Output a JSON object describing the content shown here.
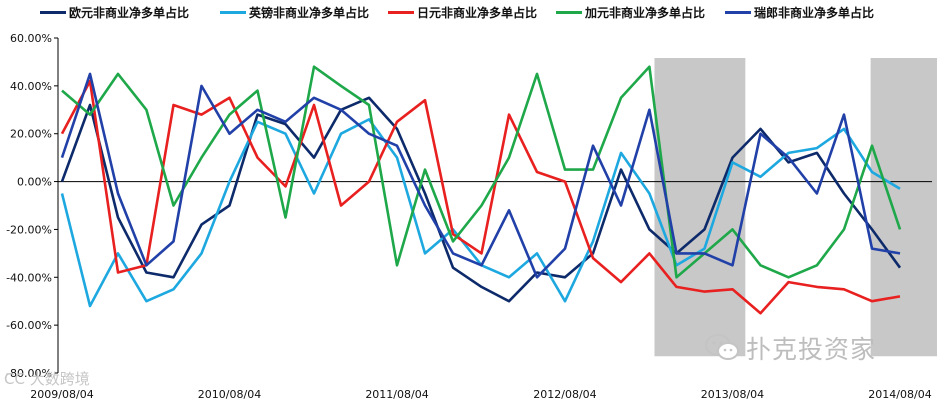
{
  "chart_data": {
    "type": "line",
    "y_ticks": [
      "60.00%",
      "40.00%",
      "20.00%",
      "0.00%",
      "-20.00%",
      "-40.00%",
      "-60.00%",
      "-80.00%"
    ],
    "x_ticks": [
      "2009/08/04",
      "2010/08/04",
      "2011/08/04",
      "2012/08/04",
      "2013/08/04",
      "2014/08/04"
    ],
    "ylim": [
      -80,
      60
    ],
    "xlim": [
      "2009-08-04",
      "2014-08-04"
    ],
    "grid": false,
    "zero_line": true,
    "legend_position": "top",
    "shaded_periods": [
      {
        "start": "2013-02-15",
        "end": "2013-09-01"
      },
      {
        "start": "2014-06-01",
        "end": "2014-08-04"
      }
    ],
    "x_dates": [
      "2009-08-04",
      "2009-10-04",
      "2009-12-04",
      "2010-02-04",
      "2010-04-04",
      "2010-06-04",
      "2010-08-04",
      "2010-10-04",
      "2010-12-04",
      "2011-02-04",
      "2011-04-04",
      "2011-06-04",
      "2011-08-04",
      "2011-10-04",
      "2011-12-04",
      "2012-02-04",
      "2012-04-04",
      "2012-06-04",
      "2012-08-04",
      "2012-10-04",
      "2012-12-04",
      "2013-02-04",
      "2013-04-04",
      "2013-06-04",
      "2013-08-04",
      "2013-10-04",
      "2013-12-04",
      "2014-02-04",
      "2014-04-04",
      "2014-06-04",
      "2014-08-04"
    ],
    "series": [
      {
        "name": "欧元非商业净多单占比",
        "color": "#0d2a6b",
        "values": [
          0,
          32,
          -15,
          -38,
          -40,
          -18,
          -10,
          28,
          24,
          10,
          30,
          35,
          22,
          -5,
          -36,
          -44,
          -50,
          -38,
          -40,
          -30,
          5,
          -20,
          -30,
          -20,
          10,
          22,
          8,
          12,
          -5,
          -20,
          -36
        ]
      },
      {
        "name": "英镑非商业净多单占比",
        "color": "#1ea8e0",
        "values": [
          -5,
          -52,
          -30,
          -50,
          -45,
          -30,
          0,
          25,
          20,
          -5,
          20,
          26,
          10,
          -30,
          -20,
          -35,
          -40,
          -30,
          -50,
          -25,
          12,
          -5,
          -35,
          -28,
          8,
          2,
          12,
          14,
          22,
          4,
          -3
        ]
      },
      {
        "name": "日元非商业净多单占比",
        "color": "#e8201f",
        "values": [
          20,
          42,
          -38,
          -35,
          32,
          28,
          35,
          10,
          -2,
          32,
          -10,
          0,
          25,
          34,
          -22,
          -30,
          28,
          4,
          0,
          -32,
          -42,
          -30,
          -44,
          -46,
          -45,
          -55,
          -42,
          -44,
          -45,
          -50,
          -48
        ]
      },
      {
        "name": "加元非商业净多单占比",
        "color": "#1fa84a",
        "values": [
          38,
          28,
          45,
          30,
          -10,
          10,
          28,
          38,
          -15,
          48,
          40,
          32,
          -35,
          5,
          -25,
          -10,
          10,
          45,
          5,
          5,
          35,
          48,
          -40,
          -30,
          -20,
          -35,
          -40,
          -35,
          -20,
          15,
          -20
        ]
      },
      {
        "name": "瑞郎非商业净多单占比",
        "color": "#2140a8",
        "values": [
          10,
          45,
          -5,
          -35,
          -25,
          40,
          20,
          30,
          25,
          35,
          30,
          20,
          15,
          -10,
          -30,
          -35,
          -12,
          -40,
          -28,
          15,
          -10,
          30,
          -30,
          -30,
          -35,
          20,
          10,
          -5,
          28,
          -28,
          -30
        ]
      }
    ]
  },
  "watermark": {
    "text": "扑克投资家",
    "icon": "wechat-icon"
  },
  "corner_mark": {
    "text": "CC 大数跨境",
    "icon": "cc-icon"
  }
}
